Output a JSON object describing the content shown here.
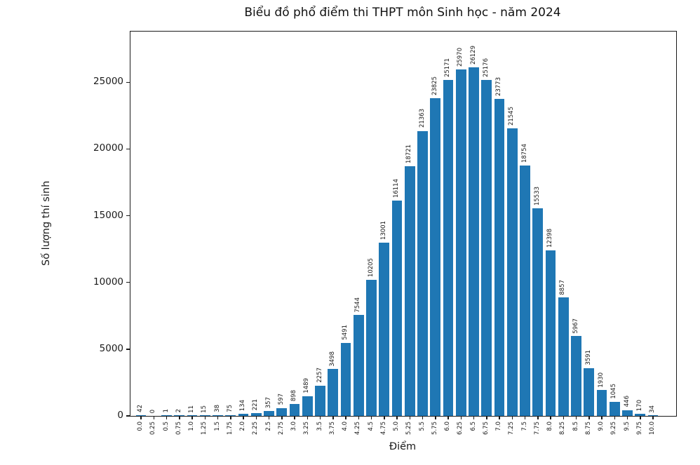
{
  "chart_data": {
    "type": "bar",
    "title": "Biểu đồ phổ điểm thi THPT môn Sinh học - năm 2024",
    "xlabel": "Điểm",
    "ylabel": "Số lượng thí sinh",
    "categories": [
      "0.0",
      "0.25",
      "0.5",
      "0.75",
      "1.0",
      "1.25",
      "1.5",
      "1.75",
      "2.0",
      "2.25",
      "2.5",
      "2.75",
      "3.0",
      "3.25",
      "3.5",
      "3.75",
      "4.0",
      "4.25",
      "4.5",
      "4.75",
      "5.0",
      "5.25",
      "5.5",
      "5.75",
      "6.0",
      "6.25",
      "6.5",
      "6.75",
      "7.0",
      "7.25",
      "7.5",
      "7.75",
      "8.0",
      "8.25",
      "8.5",
      "8.75",
      "9.0",
      "9.25",
      "9.5",
      "9.75",
      "10.0"
    ],
    "values": [
      42,
      0,
      1,
      2,
      11,
      15,
      38,
      75,
      134,
      221,
      357,
      597,
      898,
      1489,
      2257,
      3498,
      5491,
      7544,
      10205,
      13001,
      16114,
      18721,
      21363,
      23825,
      25171,
      25970,
      26129,
      25176,
      23773,
      21545,
      18754,
      15533,
      12398,
      8857,
      5967,
      3591,
      1930,
      1045,
      446,
      170,
      34
    ],
    "value_labels_shown": true,
    "yticks": [
      0,
      5000,
      10000,
      15000,
      20000,
      25000
    ],
    "ylim": [
      0,
      28800
    ],
    "bar_color": "#1f77b4",
    "grid": false,
    "legend": "none"
  }
}
